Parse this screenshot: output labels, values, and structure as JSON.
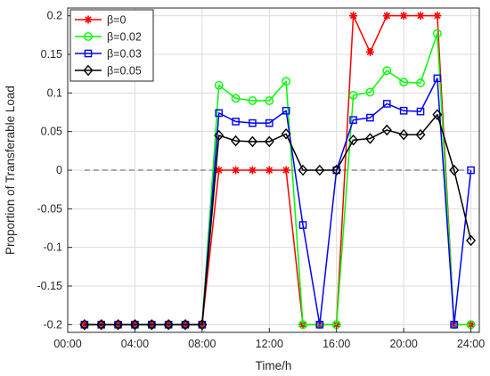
{
  "chart_data": {
    "type": "line",
    "title": "",
    "xlabel": "Time/h",
    "ylabel": "Proportion of Transferable Load",
    "xlim": [
      0,
      24.5
    ],
    "ylim": [
      -0.21,
      0.21
    ],
    "xticks": [
      0,
      4,
      8,
      12,
      16,
      20,
      24
    ],
    "xtick_labels": [
      "00:00",
      "04:00",
      "08:00",
      "12:00",
      "16:00",
      "20:00",
      "24:00"
    ],
    "yticks": [
      -0.2,
      -0.15,
      -0.1,
      -0.05,
      0,
      0.05,
      0.1,
      0.15,
      0.2
    ],
    "ytick_labels": [
      "-0.2",
      "-0.15",
      "-0.1",
      "-0.05",
      "0",
      "0.05",
      "0.1",
      "0.15",
      "0.2"
    ],
    "grid": true,
    "legend_position": "top-left",
    "zero_line": {
      "y": 0,
      "style": "dashed"
    },
    "x": [
      1,
      2,
      3,
      4,
      5,
      6,
      7,
      8,
      9,
      10,
      11,
      12,
      13,
      14,
      15,
      16,
      17,
      18,
      19,
      20,
      21,
      22,
      23,
      24
    ],
    "series": [
      {
        "name": "β=0",
        "color": "#ff0000",
        "marker": "asterisk",
        "values": [
          -0.2,
          -0.2,
          -0.2,
          -0.2,
          -0.2,
          -0.2,
          -0.2,
          -0.2,
          0,
          0,
          0,
          0,
          0,
          -0.2,
          -0.2,
          -0.2,
          0.2,
          0.153,
          0.2,
          0.2,
          0.2,
          0.2,
          -0.2,
          -0.2
        ]
      },
      {
        "name": "β=0.02",
        "color": "#00ff00",
        "marker": "circle",
        "values": [
          -0.2,
          -0.2,
          -0.2,
          -0.2,
          -0.2,
          -0.2,
          -0.2,
          -0.2,
          0.11,
          0.093,
          0.09,
          0.09,
          0.115,
          -0.2,
          -0.2,
          -0.2,
          0.097,
          0.101,
          0.129,
          0.114,
          0.113,
          0.177,
          -0.2,
          -0.2
        ]
      },
      {
        "name": "β=0.03",
        "color": "#0000ff",
        "marker": "square",
        "values": [
          -0.2,
          -0.2,
          -0.2,
          -0.2,
          -0.2,
          -0.2,
          -0.2,
          -0.2,
          0.074,
          0.063,
          0.061,
          0.061,
          0.077,
          -0.071,
          -0.2,
          0,
          0.065,
          0.068,
          0.086,
          0.077,
          0.076,
          0.119,
          -0.2,
          0
        ]
      },
      {
        "name": "β=0.05",
        "color": "#000000",
        "marker": "diamond",
        "values": [
          -0.2,
          -0.2,
          -0.2,
          -0.2,
          -0.2,
          -0.2,
          -0.2,
          -0.2,
          0.045,
          0.038,
          0.037,
          0.037,
          0.047,
          0,
          0,
          0,
          0.039,
          0.041,
          0.052,
          0.046,
          0.046,
          0.072,
          0,
          -0.091
        ]
      }
    ]
  }
}
